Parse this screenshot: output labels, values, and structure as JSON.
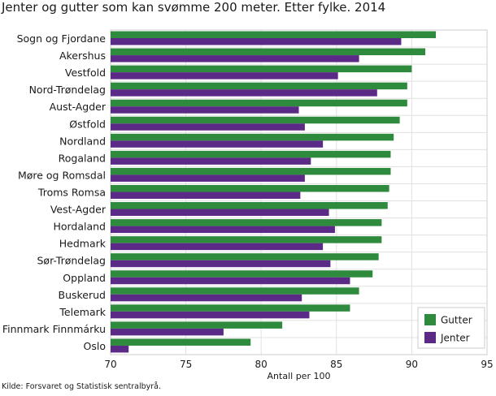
{
  "title": "Jenter og gutter som kan svømme 200 meter. Etter fylke. 2014",
  "source": "Kilde: Forsvaret og Statistisk sentralbyrå.",
  "colors": {
    "gutter": "#2e8b3e",
    "jenter": "#5b2a86",
    "grid": "#e0e0e0",
    "border": "#cccccc"
  },
  "chart_data": {
    "type": "bar",
    "orientation": "horizontal",
    "title": "Jenter og gutter som kan svømme 200 meter. Etter fylke. 2014",
    "xlabel": "Antall per 100",
    "ylabel": "",
    "xlim": [
      70,
      95
    ],
    "xticks": [
      70,
      75,
      80,
      85,
      90,
      95
    ],
    "grid": true,
    "legend_position": "bottom-right",
    "categories": [
      "Sogn og Fjordane",
      "Akershus",
      "Vestfold",
      "Nord-Trøndelag",
      "Aust-Agder",
      "Østfold",
      "Nordland",
      "Rogaland",
      "Møre og Romsdal",
      "Troms Romsa",
      "Vest-Agder",
      "Hordaland",
      "Hedmark",
      "Sør-Trøndelag",
      "Oppland",
      "Buskerud",
      "Telemark",
      "Finnmark Finnmárku",
      "Oslo"
    ],
    "series": [
      {
        "name": "Gutter",
        "color": "#2e8b3e",
        "values": [
          91.6,
          90.9,
          90.0,
          89.7,
          89.7,
          89.2,
          88.8,
          88.6,
          88.6,
          88.5,
          88.4,
          88.0,
          88.0,
          87.8,
          87.4,
          86.5,
          85.9,
          81.4,
          79.3
        ]
      },
      {
        "name": "Jenter",
        "color": "#5b2a86",
        "values": [
          89.3,
          86.5,
          85.1,
          87.7,
          82.5,
          82.9,
          84.1,
          83.3,
          82.9,
          82.6,
          84.5,
          84.9,
          84.1,
          84.6,
          85.9,
          82.7,
          83.2,
          77.5,
          71.2
        ]
      }
    ]
  }
}
